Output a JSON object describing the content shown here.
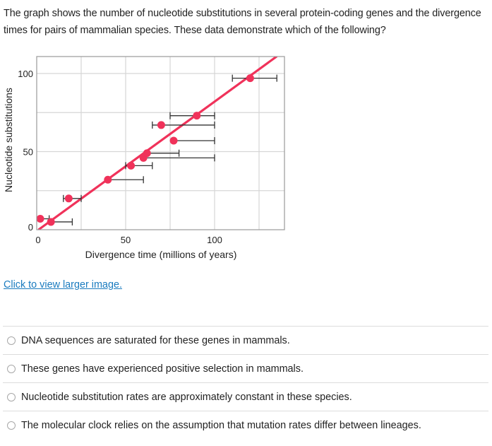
{
  "question": {
    "text": "The graph shows the number of nucleotide substitutions in several protein-coding genes and the divergence times for pairs of mammalian species. These data demonstrate which of the following?"
  },
  "link": {
    "label": "Click to view larger image."
  },
  "options": [
    {
      "label": "DNA sequences are saturated for these genes in mammals."
    },
    {
      "label": "These genes have experienced positive selection in mammals."
    },
    {
      "label": "Nucleotide substitution rates are approximately constant in these species."
    },
    {
      "label": "The molecular clock relies on the assumption that mutation rates differ between lineages."
    }
  ],
  "colors": {
    "point": "#f0325a",
    "line": "#f0325a",
    "errorbar": "#333333",
    "grid": "#d6d6d6",
    "border": "#9a9a9a",
    "link": "#1a7bbf"
  },
  "chart_data": {
    "type": "scatter",
    "title": "",
    "xlabel": "Divergence time (millions of years)",
    "ylabel": "Nucleotide substitutions",
    "xlim": [
      0,
      139
    ],
    "ylim": [
      0,
      111
    ],
    "x_ticks": [
      0,
      50,
      100
    ],
    "y_ticks": [
      0,
      50,
      100
    ],
    "x_grid": [
      25,
      50,
      75,
      100,
      125
    ],
    "y_grid": [
      25,
      50,
      75,
      100
    ],
    "grid": true,
    "legend": null,
    "points": [
      {
        "x": 2,
        "y": 7,
        "xerr_low": 2,
        "xerr_high": 7
      },
      {
        "x": 8,
        "y": 5,
        "xerr_low": 8,
        "xerr_high": 20
      },
      {
        "x": 18,
        "y": 20,
        "xerr_low": 15,
        "xerr_high": 25
      },
      {
        "x": 40,
        "y": 32,
        "xerr_low": 40,
        "xerr_high": 60
      },
      {
        "x": 53,
        "y": 41,
        "xerr_low": 50,
        "xerr_high": 65
      },
      {
        "x": 60,
        "y": 46,
        "xerr_low": 60,
        "xerr_high": 100
      },
      {
        "x": 62,
        "y": 49,
        "xerr_low": 62,
        "xerr_high": 80
      },
      {
        "x": 77,
        "y": 57,
        "xerr_low": 77,
        "xerr_high": 100
      },
      {
        "x": 70,
        "y": 67,
        "xerr_low": 65,
        "xerr_high": 100
      },
      {
        "x": 90,
        "y": 73,
        "xerr_low": 75,
        "xerr_high": 100
      },
      {
        "x": 120,
        "y": 97,
        "xerr_low": 110,
        "xerr_high": 135
      }
    ],
    "fit_line": {
      "x0": 1,
      "y0": 0,
      "x1": 135,
      "y1": 111
    }
  }
}
